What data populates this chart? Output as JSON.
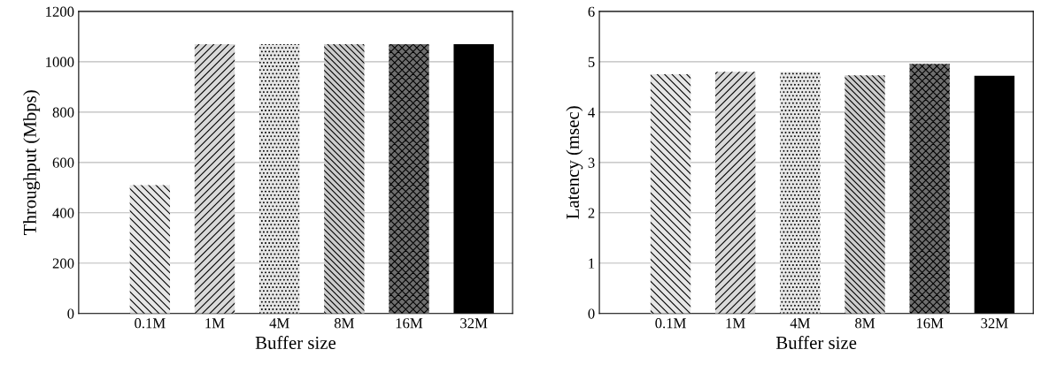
{
  "chart_data": [
    {
      "type": "bar",
      "xlabel": "Buffer size",
      "ylabel": "Throughput (Mbps)",
      "categories": [
        "0.1M",
        "1M",
        "4M",
        "8M",
        "16M",
        "32M"
      ],
      "values": [
        510,
        1070,
        1070,
        1070,
        1070,
        1070
      ],
      "colors": [
        "#e6e6e6",
        "#d9d9d9",
        "#e6e6e6",
        "#cccccc",
        "#6e6e6e",
        "#000000"
      ],
      "ylim": [
        0,
        1200
      ],
      "yticks": [
        0,
        200,
        400,
        600,
        800,
        1000,
        1200
      ],
      "grid": "y",
      "legend": false
    },
    {
      "type": "bar",
      "xlabel": "Buffer size",
      "ylabel": "Latency (msec)",
      "categories": [
        "0.1M",
        "1M",
        "4M",
        "8M",
        "16M",
        "32M"
      ],
      "values": [
        4.75,
        4.8,
        4.8,
        4.73,
        4.96,
        4.72
      ],
      "colors": [
        "#e6e6e6",
        "#d9d9d9",
        "#e6e6e6",
        "#cccccc",
        "#6e6e6e",
        "#000000"
      ],
      "ylim": [
        0,
        6
      ],
      "yticks": [
        0,
        1,
        2,
        3,
        4,
        5,
        6
      ],
      "grid": "y",
      "legend": false
    }
  ]
}
